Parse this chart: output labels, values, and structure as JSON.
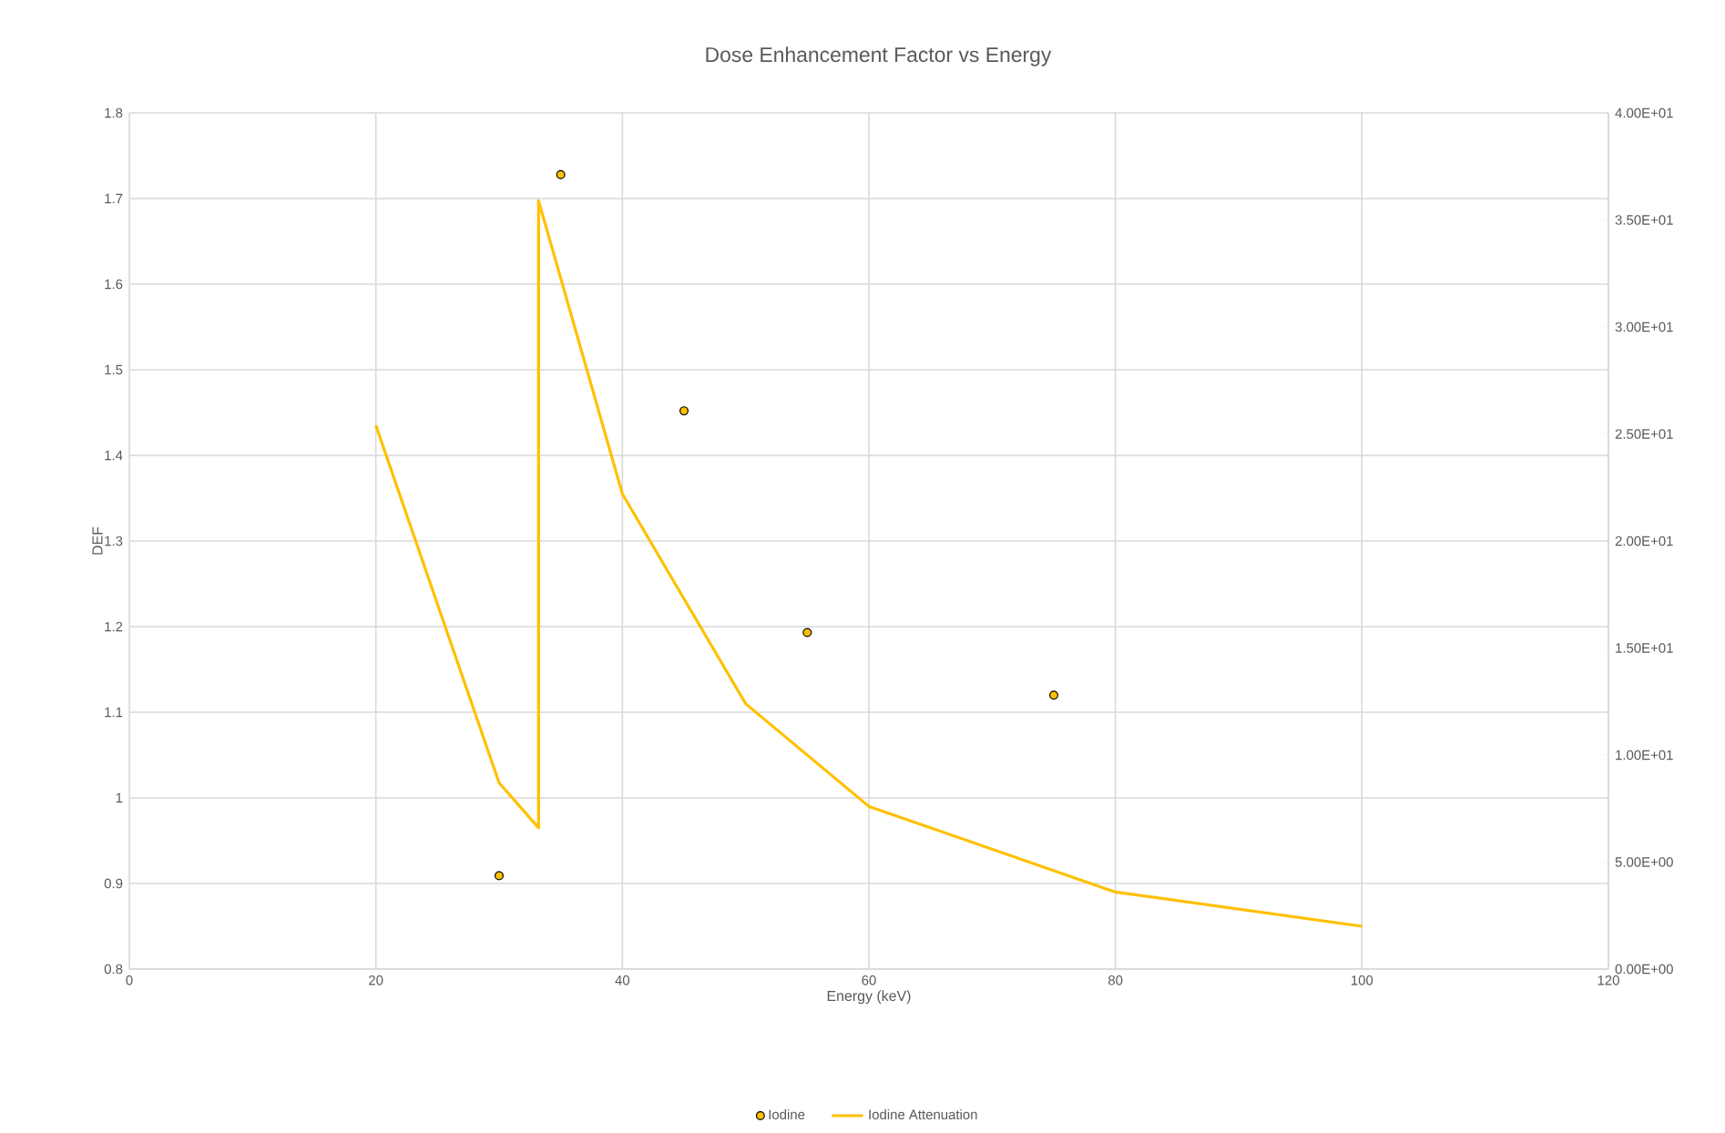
{
  "chart_data": {
    "type": "scatter",
    "title": "Dose Enhancement Factor vs Energy",
    "xlabel": "Energy (keV)",
    "ylabel": "DEF",
    "xlim": [
      0,
      120
    ],
    "xticks": [
      0,
      20,
      40,
      60,
      80,
      100,
      120
    ],
    "ylim": [
      0.8,
      1.8
    ],
    "yticks": [
      0.8,
      0.9,
      1,
      1.1,
      1.2,
      1.3,
      1.4,
      1.5,
      1.6,
      1.7,
      1.8
    ],
    "y2lim": [
      0,
      40
    ],
    "y2ticks": [
      {
        "value": 0,
        "label": "0.00E+00"
      },
      {
        "value": 5,
        "label": "5.00E+00"
      },
      {
        "value": 10,
        "label": "1.00E+01"
      },
      {
        "value": 15,
        "label": "1.50E+01"
      },
      {
        "value": 20,
        "label": "2.00E+01"
      },
      {
        "value": 25,
        "label": "2.50E+01"
      },
      {
        "value": 30,
        "label": "3.00E+01"
      },
      {
        "value": 35,
        "label": "3.50E+01"
      },
      {
        "value": 40,
        "label": "4.00E+01"
      }
    ],
    "grid": true,
    "legend": "bottom",
    "series": [
      {
        "name": "Iodine",
        "marker": "circle",
        "color": "#ffc000",
        "x": [
          30,
          35,
          45,
          55,
          75
        ],
        "values": [
          0.909,
          1.728,
          1.452,
          1.193,
          1.12
        ]
      },
      {
        "name": "Iodine Attenuation",
        "type": "line",
        "marker": "none",
        "line_style": "solid",
        "axis": "y2",
        "color": "#ffc000",
        "x": [
          20,
          30,
          33.2,
          33.2,
          40,
          50,
          60,
          80,
          100
        ],
        "values": [
          25.4,
          8.7,
          6.6,
          35.9,
          22.2,
          12.4,
          7.6,
          3.6,
          2.0
        ]
      }
    ]
  }
}
